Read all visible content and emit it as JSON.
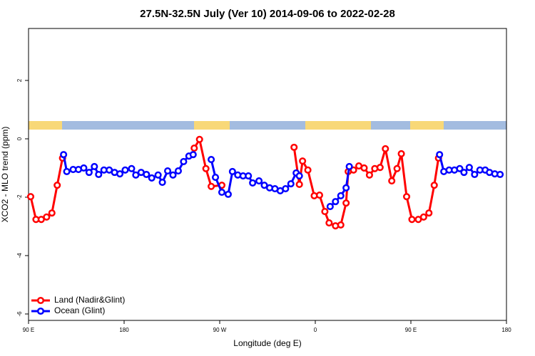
{
  "chart_data": {
    "type": "line",
    "title": "27.5N-32.5N July (Ver 10)   2014-09-06 to 2022-02-28",
    "x_label": "Longitude (deg E)",
    "y_label": "XCO2 - MLO trend (ppm)",
    "xlim": [
      90,
      540
    ],
    "xticks": [
      {
        "value": 90,
        "label": "90 E"
      },
      {
        "value": 180,
        "label": "180"
      },
      {
        "value": 270,
        "label": "90 W"
      },
      {
        "value": 360,
        "label": "0"
      },
      {
        "value": 450,
        "label": "90 E"
      },
      {
        "value": 540,
        "label": "180"
      }
    ],
    "ylim": [
      -6.22,
      3.78
    ],
    "yticks": [
      -6,
      -4,
      -2,
      0,
      2
    ],
    "legend": "bottom-left",
    "series": [
      {
        "name": "Land (Nadir&Glint)",
        "color": "#ff0000",
        "x": [
          92,
          97,
          102,
          107,
          112,
          117,
          122,
          184,
          246,
          251,
          257,
          262,
          272,
          306,
          340,
          345,
          348,
          353,
          359,
          364,
          369,
          373,
          379,
          384,
          389,
          391,
          396,
          401,
          406,
          411,
          416,
          421,
          426,
          432,
          437,
          441,
          446,
          451,
          457,
          462,
          467,
          472,
          476
        ],
        "values": [
          -1.98,
          -2.76,
          -2.76,
          -2.68,
          -2.54,
          -1.59,
          -0.66,
          null,
          -0.32,
          -0.02,
          -1.02,
          -1.63,
          -1.59,
          null,
          -0.29,
          -1.56,
          -0.76,
          -1.07,
          -1.95,
          -1.93,
          -2.49,
          -2.88,
          -2.98,
          -2.95,
          -2.2,
          -1.12,
          -1.07,
          -0.93,
          -1.0,
          -1.24,
          -1.02,
          -0.98,
          -0.34,
          -1.44,
          -1.02,
          -0.51,
          -1.98,
          -2.76,
          -2.76,
          -2.68,
          -2.54,
          -1.59,
          -0.66
        ]
      },
      {
        "name": "Ocean (Glint)",
        "color": "#0000ff",
        "x": [
          123,
          126,
          132,
          137,
          142,
          147,
          152,
          156,
          161,
          166,
          171,
          176,
          181,
          187,
          191,
          196,
          201,
          206,
          212,
          216,
          221,
          226,
          231,
          236,
          241,
          245,
          254,
          262,
          266,
          272,
          278,
          282,
          287,
          292,
          297,
          301,
          307,
          312,
          317,
          322,
          327,
          332,
          337,
          342,
          345,
          360,
          374,
          379,
          384,
          389,
          392,
          434,
          477,
          481,
          486,
          491,
          496,
          500,
          505,
          510,
          515,
          520,
          524,
          529,
          534
        ],
        "values": [
          -0.54,
          -1.12,
          -1.05,
          -1.05,
          -1.0,
          -1.15,
          -0.95,
          -1.22,
          -1.07,
          -1.07,
          -1.15,
          -1.2,
          -1.07,
          -1.02,
          -1.24,
          -1.15,
          -1.22,
          -1.34,
          -1.24,
          -1.49,
          -1.1,
          -1.24,
          -1.1,
          -0.78,
          -0.59,
          -0.54,
          null,
          -0.71,
          -1.32,
          -1.83,
          -1.9,
          -1.12,
          -1.24,
          -1.27,
          -1.27,
          -1.51,
          -1.44,
          -1.59,
          -1.68,
          -1.71,
          -1.78,
          -1.71,
          -1.54,
          -1.17,
          -1.27,
          null,
          -2.32,
          -2.15,
          -1.95,
          -1.68,
          -0.95,
          null,
          -0.54,
          -1.12,
          -1.07,
          -1.07,
          -1.02,
          -1.15,
          -0.98,
          -1.22,
          -1.07,
          -1.07,
          -1.15,
          -1.2,
          -1.22
        ]
      }
    ]
  }
}
